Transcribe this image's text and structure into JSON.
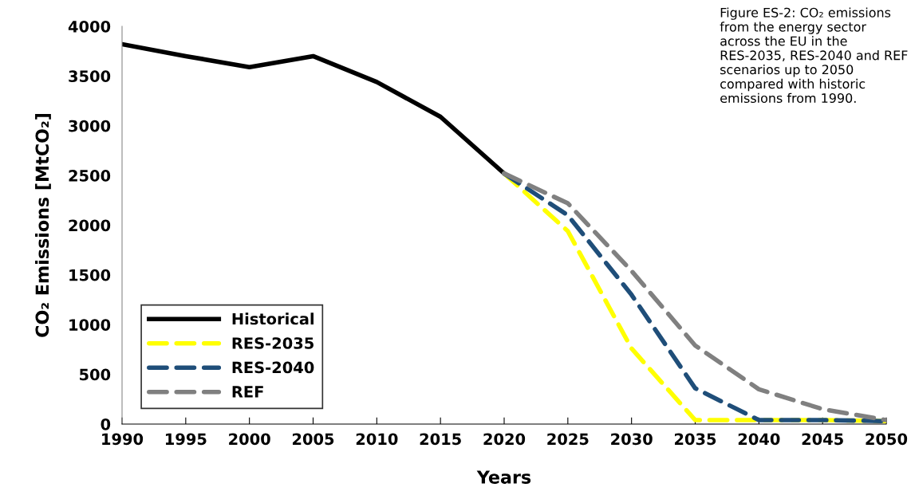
{
  "chart_data": {
    "type": "line",
    "xlabel": "Years",
    "ylabel": "CO₂ Emissions [MtCO₂]",
    "annotations": [
      "Figure ES-2: CO₂ emissions from the energy sector across the EU in the RES-2035, RES-2040 and REF scenarios up to 2050 compared with historic emissions from 1990."
    ],
    "xlim": [
      1990,
      2050
    ],
    "xticks": [
      1990,
      1995,
      2000,
      2005,
      2010,
      2015,
      2020,
      2025,
      2030,
      2035,
      2040,
      2045,
      2050
    ],
    "ylim": [
      0,
      4000
    ],
    "yticks": [
      0,
      500,
      1000,
      1500,
      2000,
      2500,
      3000,
      3500,
      4000
    ],
    "grid": false,
    "legend": "bottom left",
    "series": [
      {
        "name": "Historical",
        "color": "#000000",
        "line_style": "solid",
        "x": [
          1990,
          1995,
          2000,
          2005,
          2010,
          2015,
          2020
        ],
        "values": [
          3820,
          3700,
          3590,
          3700,
          3440,
          3090,
          2520
        ]
      },
      {
        "name": "RES-2035",
        "color": "#ffff00",
        "line_style": "dashed",
        "x": [
          2020,
          2025,
          2030,
          2035,
          2040,
          2045,
          2050
        ],
        "values": [
          2520,
          1940,
          760,
          40,
          40,
          40,
          30
        ]
      },
      {
        "name": "RES-2040",
        "color": "#1f4e79",
        "line_style": "dashed",
        "x": [
          2020,
          2025,
          2030,
          2035,
          2040,
          2045,
          2050
        ],
        "values": [
          2520,
          2100,
          1300,
          360,
          40,
          40,
          30
        ]
      },
      {
        "name": "REF",
        "color": "#808080",
        "line_style": "dashed",
        "x": [
          2020,
          2025,
          2030,
          2035,
          2040,
          2045,
          2050
        ],
        "values": [
          2520,
          2220,
          1540,
          790,
          350,
          150,
          40
        ]
      }
    ]
  }
}
